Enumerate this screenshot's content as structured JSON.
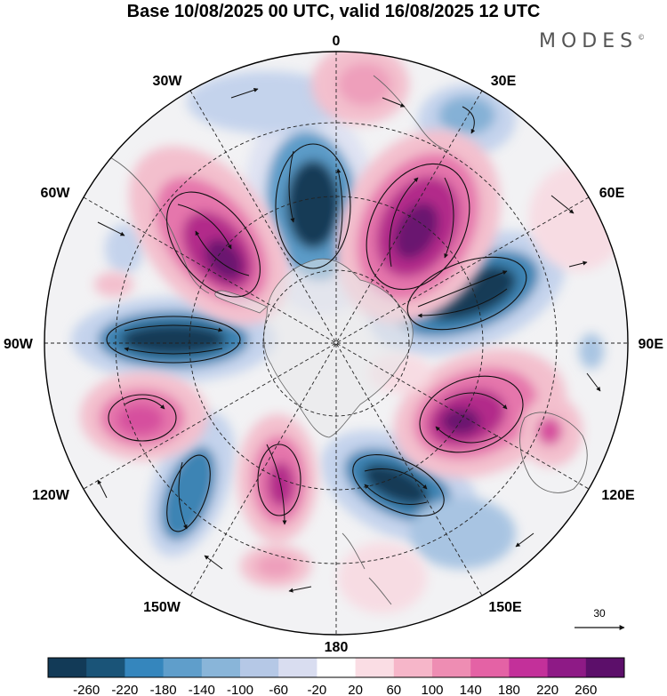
{
  "title": "Base 10/08/2025 00 UTC, valid 16/08/2025 12 UTC",
  "brand": "MODES",
  "brand_mark": "©",
  "map": {
    "projection": "south-polar-stereographic",
    "longitude_labels": {
      "top": "0",
      "bottom": "180",
      "left": "90W",
      "right": "90E",
      "nw30": "30W",
      "ne30": "30E",
      "nw60": "60W",
      "ne60": "60E",
      "sw120": "120W",
      "se120": "120E",
      "sw150": "150W",
      "se150": "150E"
    },
    "vector_reference": {
      "value": "30"
    }
  },
  "colors": {
    "neg_260": "#123a57",
    "neg_240": "#1a5478",
    "neg_220": "#226a96",
    "neg_200": "#3d84b4",
    "neg_180": "#5b9bc8",
    "neg_160": "#85b1d6",
    "neg_140": "#a8c4e2",
    "neg_120": "#c4d3ec",
    "neg_100": "#dee2f2",
    "neutral": "#ececec",
    "pos_20": "#f7dce3",
    "pos_60": "#f3bfcd",
    "pos_100": "#ee9fbb",
    "pos_140": "#e576ac",
    "pos_180": "#d64f9e",
    "pos_220": "#b22a8a",
    "pos_260": "#6a1370"
  },
  "colorbar": {
    "ticks": [
      "-260",
      "-220",
      "-180",
      "-140",
      "-100",
      "-60",
      "-20",
      "20",
      "60",
      "100",
      "140",
      "180",
      "220",
      "260"
    ],
    "bins": [
      "#123a57",
      "#1a5478",
      "#3586bd",
      "#5f9ecb",
      "#89b5d9",
      "#b5c8e6",
      "#d9ddf0",
      "#ffffff",
      "#fadde4",
      "#f6b6c9",
      "#ee8db3",
      "#e462a5",
      "#c3309a",
      "#8e1a86",
      "#5c0f6a"
    ]
  }
}
